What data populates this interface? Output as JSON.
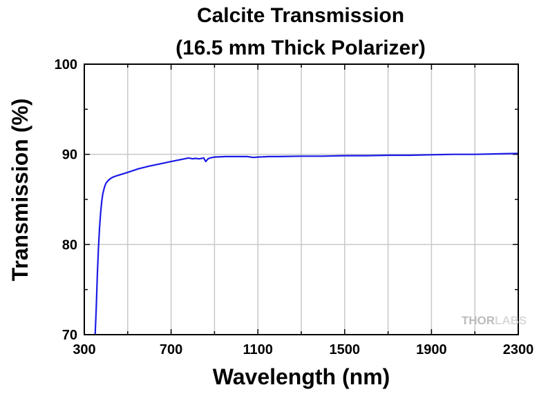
{
  "chart_data": {
    "type": "line",
    "title": "Calcite Transmission",
    "subtitle": "(16.5 mm Thick Polarizer)",
    "xlabel": "Wavelength (nm)",
    "ylabel": "Transmission (%)",
    "xlim": [
      300,
      2300
    ],
    "ylim": [
      70,
      100
    ],
    "x_ticks": [
      300,
      700,
      1100,
      1500,
      1900,
      2300
    ],
    "x_tick_labels": [
      "300",
      "700",
      "1100",
      "1500",
      "1900",
      "2300"
    ],
    "y_ticks": [
      70,
      80,
      90,
      100
    ],
    "y_tick_labels": [
      "70",
      "80",
      "90",
      "100"
    ],
    "grid": true,
    "line_color": "#1a1ae6",
    "watermark": {
      "text_dark": "THOR",
      "text_light": "LABS"
    },
    "series": [
      {
        "x": [
          350,
          355,
          360,
          365,
          370,
          375,
          380,
          385,
          390,
          395,
          400,
          410,
          420,
          430,
          440,
          460,
          480,
          500,
          550,
          600,
          650,
          700,
          750,
          780,
          800,
          810,
          830,
          850,
          860,
          870,
          880,
          900,
          950,
          1000,
          1050,
          1080,
          1100,
          1150,
          1200,
          1300,
          1400,
          1500,
          1600,
          1700,
          1800,
          1900,
          2000,
          2100,
          2200,
          2300
        ],
        "y": [
          70.0,
          73.0,
          76.5,
          79.5,
          81.8,
          83.5,
          84.7,
          85.6,
          86.1,
          86.5,
          86.8,
          87.1,
          87.3,
          87.45,
          87.55,
          87.7,
          87.85,
          88.0,
          88.4,
          88.7,
          88.95,
          89.2,
          89.45,
          89.6,
          89.5,
          89.55,
          89.5,
          89.6,
          89.2,
          89.5,
          89.6,
          89.7,
          89.75,
          89.75,
          89.75,
          89.65,
          89.7,
          89.75,
          89.75,
          89.8,
          89.8,
          89.85,
          89.85,
          89.9,
          89.9,
          89.95,
          90.0,
          90.0,
          90.05,
          90.1
        ]
      }
    ]
  }
}
